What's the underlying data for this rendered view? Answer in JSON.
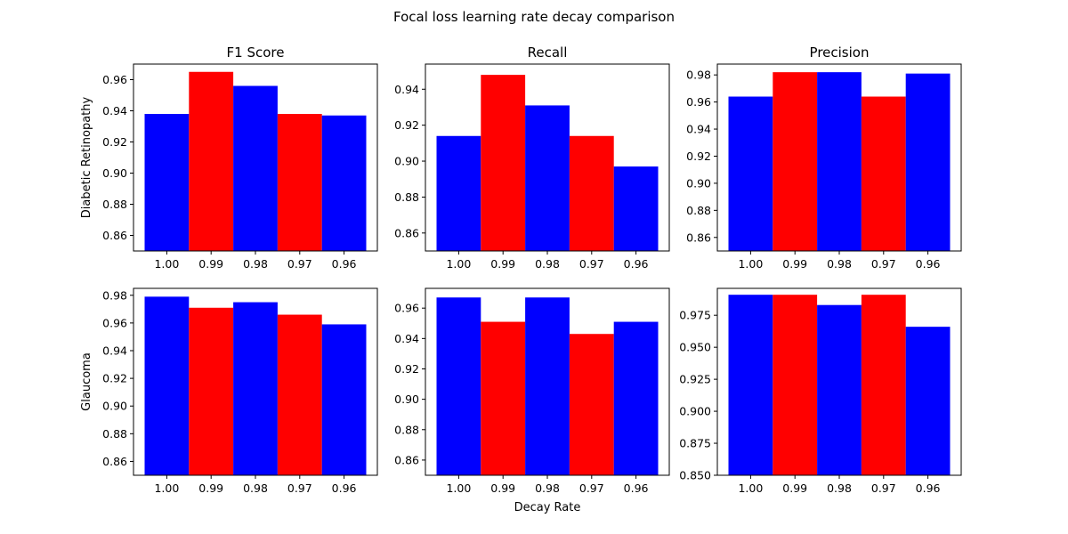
{
  "figure": {
    "suptitle": "Focal loss learning rate decay comparison",
    "xlabel": "Decay Rate"
  },
  "colors": {
    "blue": "#0000ff",
    "red": "#ff0000"
  },
  "chart_data": [
    {
      "type": "bar",
      "title": "F1 Score",
      "ylabel": "Diabetic Retinopathy",
      "categories": [
        "1.00",
        "0.99",
        "0.98",
        "0.97",
        "0.96"
      ],
      "values": [
        0.938,
        0.965,
        0.956,
        0.938,
        0.937
      ],
      "bar_colors": [
        "blue",
        "red",
        "blue",
        "red",
        "blue"
      ],
      "ylim": [
        0.85,
        0.97
      ],
      "yticks": [
        0.86,
        0.88,
        0.9,
        0.92,
        0.94,
        0.96
      ],
      "ytick_labels": [
        "0.86",
        "0.88",
        "0.90",
        "0.92",
        "0.94",
        "0.96"
      ]
    },
    {
      "type": "bar",
      "title": "Recall",
      "ylabel": "",
      "categories": [
        "1.00",
        "0.99",
        "0.98",
        "0.97",
        "0.96"
      ],
      "values": [
        0.914,
        0.948,
        0.931,
        0.914,
        0.897
      ],
      "bar_colors": [
        "blue",
        "red",
        "blue",
        "red",
        "blue"
      ],
      "ylim": [
        0.85,
        0.954
      ],
      "yticks": [
        0.86,
        0.88,
        0.9,
        0.92,
        0.94
      ],
      "ytick_labels": [
        "0.86",
        "0.88",
        "0.90",
        "0.92",
        "0.94"
      ]
    },
    {
      "type": "bar",
      "title": "Precision",
      "ylabel": "",
      "categories": [
        "1.00",
        "0.99",
        "0.98",
        "0.97",
        "0.96"
      ],
      "values": [
        0.964,
        0.982,
        0.982,
        0.964,
        0.981
      ],
      "bar_colors": [
        "blue",
        "red",
        "blue",
        "red",
        "blue"
      ],
      "ylim": [
        0.85,
        0.988
      ],
      "yticks": [
        0.86,
        0.88,
        0.9,
        0.92,
        0.94,
        0.96,
        0.98
      ],
      "ytick_labels": [
        "0.86",
        "0.88",
        "0.90",
        "0.92",
        "0.94",
        "0.96",
        "0.98"
      ]
    },
    {
      "type": "bar",
      "title": "",
      "ylabel": "Glaucoma",
      "categories": [
        "1.00",
        "0.99",
        "0.98",
        "0.97",
        "0.96"
      ],
      "values": [
        0.979,
        0.971,
        0.975,
        0.966,
        0.959
      ],
      "bar_colors": [
        "blue",
        "red",
        "blue",
        "red",
        "blue"
      ],
      "ylim": [
        0.85,
        0.985
      ],
      "yticks": [
        0.86,
        0.88,
        0.9,
        0.92,
        0.94,
        0.96,
        0.98
      ],
      "ytick_labels": [
        "0.86",
        "0.88",
        "0.90",
        "0.92",
        "0.94",
        "0.96",
        "0.98"
      ]
    },
    {
      "type": "bar",
      "title": "",
      "ylabel": "",
      "categories": [
        "1.00",
        "0.99",
        "0.98",
        "0.97",
        "0.96"
      ],
      "values": [
        0.967,
        0.951,
        0.967,
        0.943,
        0.951
      ],
      "bar_colors": [
        "blue",
        "red",
        "blue",
        "red",
        "blue"
      ],
      "ylim": [
        0.85,
        0.973
      ],
      "yticks": [
        0.86,
        0.88,
        0.9,
        0.92,
        0.94,
        0.96
      ],
      "ytick_labels": [
        "0.86",
        "0.88",
        "0.90",
        "0.92",
        "0.94",
        "0.96"
      ]
    },
    {
      "type": "bar",
      "title": "",
      "ylabel": "",
      "categories": [
        "1.00",
        "0.99",
        "0.98",
        "0.97",
        "0.96"
      ],
      "values": [
        0.991,
        0.991,
        0.983,
        0.991,
        0.966
      ],
      "bar_colors": [
        "blue",
        "red",
        "blue",
        "red",
        "blue"
      ],
      "ylim": [
        0.85,
        0.996
      ],
      "yticks": [
        0.85,
        0.875,
        0.9,
        0.925,
        0.95,
        0.975
      ],
      "ytick_labels": [
        "0.850",
        "0.875",
        "0.900",
        "0.925",
        "0.950",
        "0.975"
      ]
    }
  ]
}
